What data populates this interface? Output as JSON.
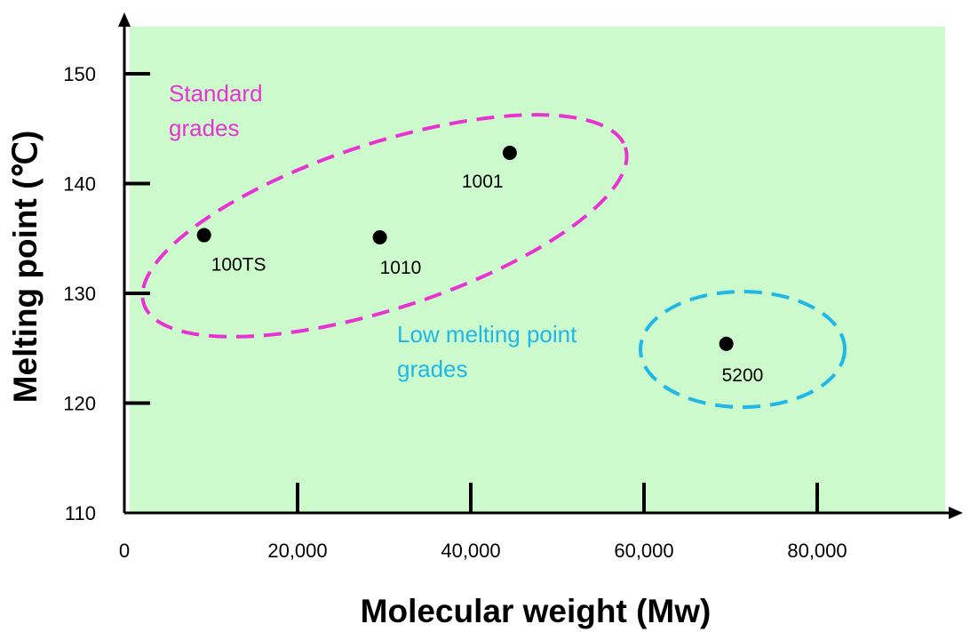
{
  "chart_data": {
    "type": "scatter",
    "xlabel": "Molecular weight (Mw)",
    "ylabel": "Melting point (℃)",
    "xlim": [
      0,
      95000
    ],
    "ylim": [
      110,
      154
    ],
    "x_ticks": [
      0,
      20000,
      40000,
      60000,
      80000
    ],
    "x_tick_labels": [
      "0",
      "20,000",
      "40,000",
      "60,000",
      "80,000"
    ],
    "y_ticks": [
      110,
      120,
      130,
      140,
      150
    ],
    "y_tick_labels": [
      "110",
      "120",
      "130",
      "140",
      "150"
    ],
    "grid": false,
    "points": [
      {
        "label": "100TS",
        "x": 9200,
        "y": 135.3
      },
      {
        "label": "1010",
        "x": 29500,
        "y": 135.1
      },
      {
        "label": "1001",
        "x": 44500,
        "y": 142.8
      },
      {
        "label": "5200",
        "x": 69500,
        "y": 125.4
      }
    ],
    "groups": [
      {
        "label_lines": [
          "Standard",
          "grades"
        ],
        "color": "#e832d2",
        "members": [
          "100TS",
          "1010",
          "1001"
        ]
      },
      {
        "label_lines": [
          "Low melting point",
          "grades"
        ],
        "color": "#1fb8e6",
        "members": [
          "5200"
        ]
      }
    ],
    "colors": {
      "plot_background": "#ccfacc",
      "point": "#000000",
      "axis": "#000000"
    }
  }
}
